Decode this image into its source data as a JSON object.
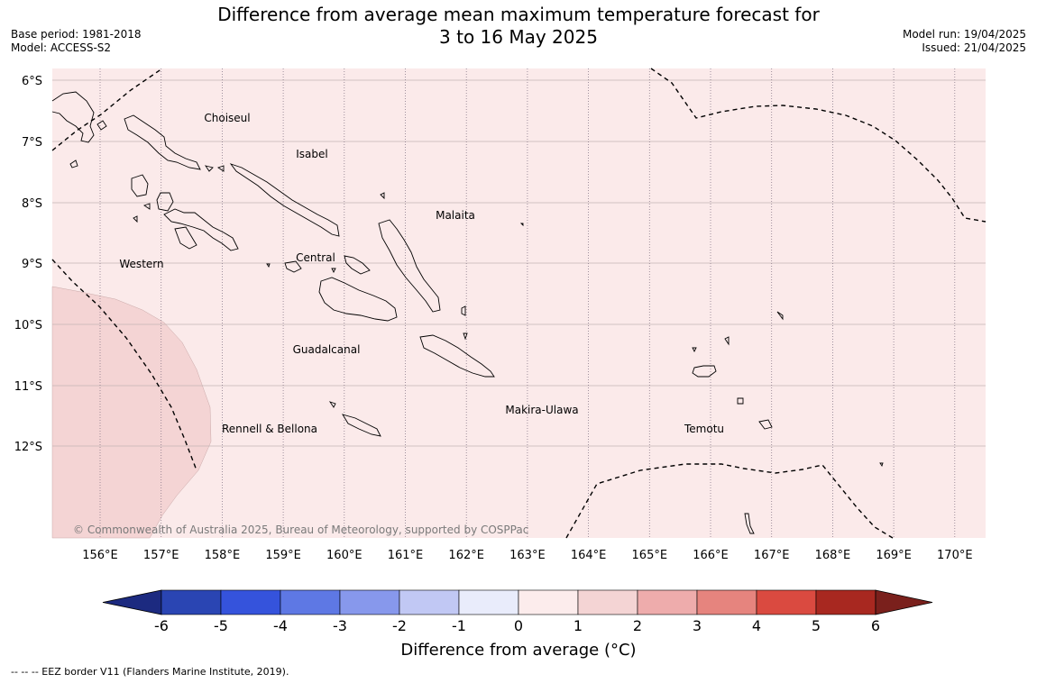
{
  "header": {
    "title_line1": "Difference from average mean maximum temperature forecast for",
    "title_line2": "3 to 16 May 2025",
    "base_period": "Base period: 1981-2018",
    "model": "Model: ACCESS-S2",
    "model_run": "Model run: 19/04/2025",
    "issued": "Issued: 21/04/2025"
  },
  "map": {
    "background_color": "#fbeaea",
    "warm_color": "#f4d4d4",
    "lat_labels": [
      "6°S",
      "7°S",
      "8°S",
      "9°S",
      "10°S",
      "11°S",
      "12°S"
    ],
    "lon_labels": [
      "156°E",
      "157°E",
      "158°E",
      "159°E",
      "160°E",
      "161°E",
      "162°E",
      "163°E",
      "164°E",
      "165°E",
      "166°E",
      "167°E",
      "168°E",
      "169°E",
      "170°E"
    ],
    "regions": [
      "Choiseul",
      "Isabel",
      "Malaita",
      "Western",
      "Central",
      "Guadalcanal",
      "Makira-Ulawa",
      "Rennell & Bellona",
      "Temotu"
    ],
    "copyright": "© Commonwealth of Australia 2025, Bureau of Meteorology, supported by COSPPac"
  },
  "colorbar": {
    "ticks": [
      "-6",
      "-5",
      "-4",
      "-3",
      "-2",
      "-1",
      "0",
      "1",
      "2",
      "3",
      "4",
      "5",
      "6"
    ],
    "colors": [
      "#1c2a80",
      "#2a45b3",
      "#3553dc",
      "#5e78e4",
      "#8798ec",
      "#c1c8f4",
      "#e9ecfb",
      "#fcecec",
      "#f4d4d4",
      "#eeacac",
      "#e6847e",
      "#da4a40",
      "#a82820",
      "#7a201c"
    ],
    "label": "Difference from average (°C)"
  },
  "footer": {
    "eez_note": "--  --  -- EEZ border V11 (Flanders Marine Institute, 2019)."
  }
}
